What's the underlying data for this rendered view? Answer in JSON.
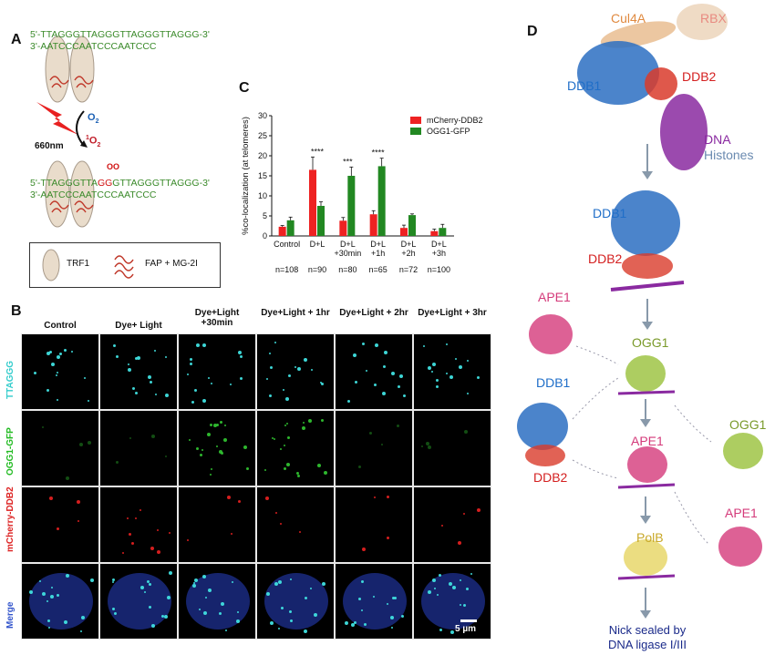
{
  "panelA": {
    "label": "A",
    "seq1_top": "5'-TTAGGGTTAGGGTTAGGGTTAGGG-3'",
    "seq1_bot": "3'-AATCCCAATCCCAATCCC",
    "seq2_top_a": "5'-TTAGGGTTA",
    "seq2_top_b": "GG",
    "seq2_top_c": "GTTAGGGTTAGGG-3'",
    "seq2_bot": "3'-AATCCCAATCCCAATCCC",
    "oxo_mark": "OO",
    "light": "660nm",
    "o2": "O",
    "o2_sub": "2",
    "singlet_o2_pre": "1",
    "singlet_o2": "O",
    "singlet_o2_sub": "2",
    "legend_trf1": "TRF1",
    "legend_fap": "FAP + MG-2I"
  },
  "panelB": {
    "label": "B",
    "columns": [
      "Control",
      "Dye+ Light",
      "Dye+Light +30min",
      "Dye+Light + 1hr",
      "Dye+Light + 2hr",
      "Dye+Light + 3hr"
    ],
    "rows": [
      {
        "label": "TTAGGG",
        "color": "#33cccc"
      },
      {
        "label": "OGG1-GFP",
        "color": "#22bb22"
      },
      {
        "label": "mCherry-DDB2",
        "color": "#dd2222"
      },
      {
        "label": "Merge",
        "color": "#3355cc"
      }
    ],
    "scale": "5 µm"
  },
  "panelC": {
    "label": "C"
  },
  "chart_data": {
    "type": "bar",
    "title": "",
    "ylabel": "%co-localization (at telomeres)",
    "ylim": [
      0,
      30
    ],
    "yticks": [
      "0",
      "5",
      "10",
      "15",
      "20",
      "25",
      "30"
    ],
    "categories": [
      "Control",
      "D+L",
      "D+L +30min",
      "D+L +1h",
      "D+L +2h",
      "D+L +3h"
    ],
    "n_labels": [
      "n=108",
      "n=90",
      "n=80",
      "n=65",
      "n=72",
      "n=100"
    ],
    "series": [
      {
        "name": "mCherry-DDB2",
        "color": "#ee2222",
        "values": [
          2.3,
          16.5,
          3.8,
          5.4,
          2.0,
          1.2
        ],
        "errors": [
          0.3,
          3.2,
          0.8,
          0.9,
          0.7,
          0.5
        ]
      },
      {
        "name": "OGG1-GFP",
        "color": "#228822",
        "values": [
          3.9,
          7.5,
          15.0,
          17.4,
          5.2,
          2.0
        ],
        "errors": [
          0.8,
          1.0,
          2.2,
          2.0,
          0.3,
          0.9
        ]
      }
    ],
    "significance": [
      "",
      "****",
      "***",
      "****",
      "",
      ""
    ],
    "legend_position": "top-right"
  },
  "panelD": {
    "label": "D",
    "cul4a": "Cul4A",
    "rbx": "RBX",
    "ddb1": "DDB1",
    "ddb2": "DDB2",
    "dna": "DNA",
    "histones": "Histones",
    "ddb1_b": "DDB1",
    "ddb2_b": "DDB2",
    "ape1_a": "APE1",
    "ogg1": "OGG1",
    "ddb1_c": "DDB1",
    "ddb2_c": "DDB2",
    "ape1_b": "APE1",
    "ogg1_b": "OGG1",
    "polb": "PolB",
    "ape1_c": "APE1",
    "final_1": "Nick sealed by",
    "final_2": "DNA ligase I/III"
  }
}
